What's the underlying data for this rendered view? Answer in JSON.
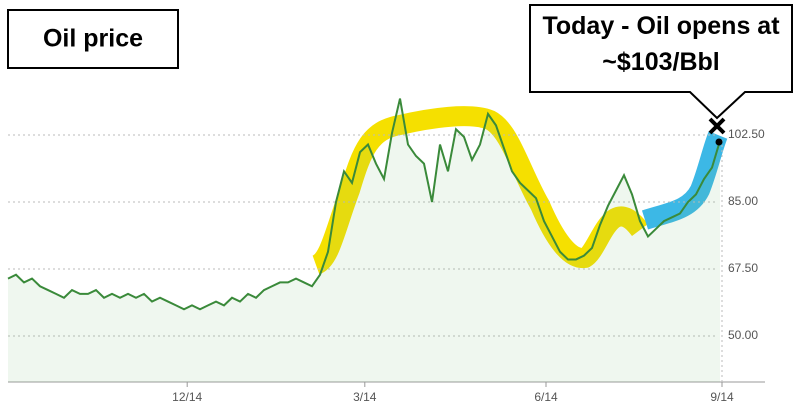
{
  "chart_data": {
    "type": "line",
    "title": "Oil price",
    "annotation": "Today - Oil opens at ~$103/Bbl",
    "values": [
      65,
      66,
      64,
      65,
      63,
      62,
      61,
      60,
      62,
      61,
      61,
      62,
      60,
      61,
      60,
      61,
      60,
      61,
      59,
      60,
      59,
      58,
      57,
      58,
      57,
      58,
      59,
      58,
      60,
      59,
      61,
      60,
      62,
      63,
      64,
      64,
      65,
      64,
      63,
      66,
      72,
      85,
      93,
      90,
      98,
      100,
      95,
      91,
      103,
      112,
      100,
      97,
      95,
      85,
      100,
      93,
      104,
      102,
      96,
      100,
      108,
      105,
      99,
      93,
      90,
      88,
      86,
      80,
      76,
      72,
      70,
      70,
      71,
      73,
      79,
      84,
      88,
      92,
      87,
      80,
      76,
      78,
      80,
      81,
      82,
      85,
      87,
      91,
      94,
      101
    ],
    "color": "#3a8a3a",
    "xlim": [
      0,
      89.5
    ],
    "xticks": [
      {
        "value": 22.4,
        "label": "12/14"
      },
      {
        "value": 44.6,
        "label": "3/14"
      },
      {
        "value": 67.25,
        "label": "6/14"
      },
      {
        "value": 89.25,
        "label": "9/14"
      }
    ],
    "ylim": [
      38,
      138
    ],
    "yticks": [
      {
        "value": 50,
        "label": "50.00"
      },
      {
        "value": 67.5,
        "label": "67.50"
      },
      {
        "value": 85,
        "label": "85.00"
      },
      {
        "value": 102.5,
        "label": "102.50"
      }
    ],
    "grid": true
  }
}
